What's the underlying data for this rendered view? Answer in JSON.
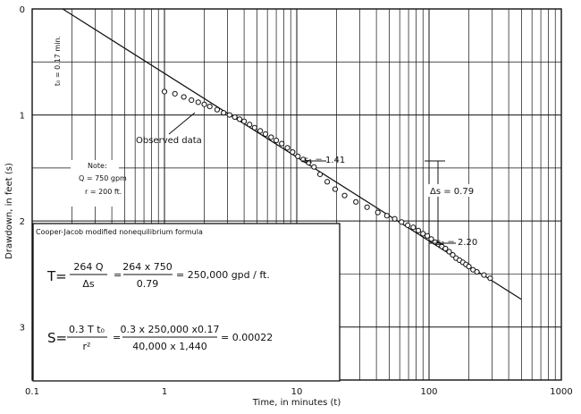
{
  "chart_data": {
    "type": "scatter",
    "x_scale": "log",
    "xlim": [
      0.1,
      1000
    ],
    "ylim": [
      0,
      3.5
    ],
    "y_inverted": true,
    "grid": true,
    "xlabel": "Time, in minutes  (t)",
    "ylabel": "Drawdown, in feet (s)",
    "x_tick_labels": [
      "0.1",
      "1",
      "10",
      "100",
      "1000"
    ],
    "y_tick_labels": [
      "0",
      "1",
      "2",
      "3"
    ],
    "series": [
      {
        "type": "scatter",
        "x": [
          1.0,
          1.2,
          1.4,
          1.6,
          1.8,
          2.0,
          2.2,
          2.5,
          2.8,
          3.1,
          3.4,
          3.7,
          4.0,
          4.4,
          4.8,
          5.3,
          5.8,
          6.4,
          7.0,
          7.7,
          8.5,
          9.3,
          10.2,
          11.2,
          12.3,
          13.5,
          15.0,
          17.0,
          19.5,
          23,
          28,
          34,
          41,
          48,
          55,
          62,
          69,
          76,
          83,
          90,
          97,
          104,
          111,
          118,
          125,
          133,
          142,
          151,
          160,
          170,
          180,
          190,
          200,
          215,
          230,
          260,
          290
        ],
        "y": [
          0.78,
          0.8,
          0.83,
          0.86,
          0.88,
          0.9,
          0.92,
          0.95,
          0.98,
          1.0,
          1.02,
          1.04,
          1.06,
          1.09,
          1.12,
          1.15,
          1.18,
          1.21,
          1.24,
          1.27,
          1.31,
          1.35,
          1.39,
          1.42,
          1.45,
          1.49,
          1.56,
          1.63,
          1.7,
          1.76,
          1.82,
          1.87,
          1.92,
          1.95,
          1.98,
          2.01,
          2.04,
          2.06,
          2.09,
          2.12,
          2.14,
          2.17,
          2.2,
          2.22,
          2.24,
          2.26,
          2.29,
          2.32,
          2.35,
          2.37,
          2.39,
          2.41,
          2.43,
          2.46,
          2.48,
          2.51,
          2.54
        ]
      },
      {
        "type": "line",
        "x": [
          0.17,
          500
        ],
        "y": [
          0.0,
          2.74
        ]
      }
    ]
  },
  "annotations": {
    "t0": "t₀ = 0.17 min.",
    "observed": "Observed data",
    "s1": "s₁ = 1.41",
    "s2": "s₂ = 2.20",
    "delta_s": "Δs = 0.79",
    "note_title": "Note:",
    "note_q": "Q = 750 gpm",
    "note_r": "r = 200 ft."
  },
  "formula_box": {
    "title": "Cooper-Jacob modified nonequilibrium formula",
    "t_lhs": "T=",
    "t_num1": "264 Q",
    "t_den1": "Δs",
    "t_num2": "264 x 750",
    "t_den2": "0.79",
    "t_result": "= 250,000   gpd / ft.",
    "s_lhs": "S=",
    "s_num1": "0.3  T t₀",
    "s_den1": "r²",
    "s_num2": "0.3 x 250,000 x0.17",
    "s_den2": "40,000  x 1,440",
    "s_result": "= 0.00022"
  }
}
